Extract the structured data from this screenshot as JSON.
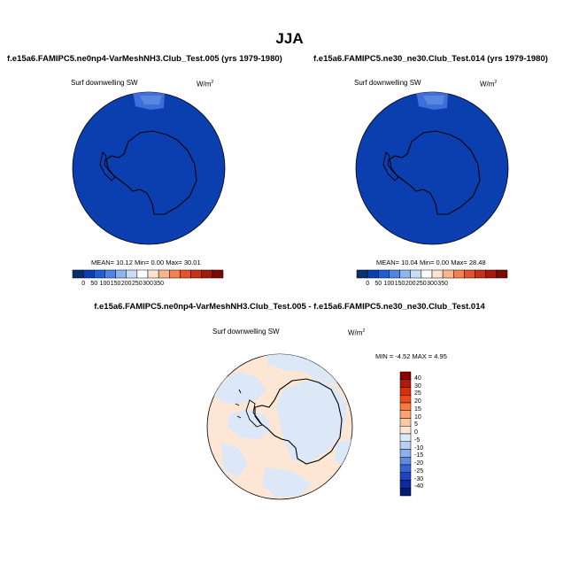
{
  "title": "JJA",
  "panels": [
    {
      "case_title": "f.e15a6.FAMIPC5.ne0np4-VarMeshNH3.Club_Test.005 (yrs 1979-1980)",
      "variable": "Surf downwelling SW",
      "units_base": "W/m",
      "units_exp": "2",
      "stats": "MEAN=  10.12  Min=   0.00  Max=  30.01"
    },
    {
      "case_title": "f.e15a6.FAMIPC5.ne30_ne30.Club_Test.014 (yrs 1979-1980)",
      "variable": "Surf downwelling SW",
      "units_base": "W/m",
      "units_exp": "2",
      "stats": "MEAN=  10.04  Min=   0.00  Max=  28.48"
    }
  ],
  "diff": {
    "title": "f.e15a6.FAMIPC5.ne0np4-VarMeshNH3.Club_Test.005 - f.e15a6.FAMIPC5.ne30_ne30.Club_Test.014",
    "variable": "Surf downwelling SW",
    "units_base": "W/m",
    "units_exp": "2",
    "stats": "MIN = -4.52 MAX =  4.95"
  },
  "colorbar_main": {
    "labels": [
      "0",
      "50",
      "100",
      "150",
      "200",
      "250",
      "300",
      "350"
    ],
    "colors": [
      "#08306b",
      "#0b3fb0",
      "#1f5fd6",
      "#4f86e6",
      "#8eb5f0",
      "#c9ddf7",
      "#ffffff",
      "#fde3cf",
      "#f9b58c",
      "#f47f50",
      "#e5522b",
      "#c43316",
      "#a11a0b",
      "#7a0a05"
    ]
  },
  "colorbar_diff": {
    "labels": [
      "40",
      "30",
      "25",
      "20",
      "15",
      "10",
      "5",
      "0",
      "-5",
      "-10",
      "-15",
      "-20",
      "-25",
      "-30",
      "-40"
    ],
    "colors": [
      "#8b0000",
      "#b01a0a",
      "#d6310d",
      "#f04a1a",
      "#f77b3f",
      "#f9a473",
      "#fcc9a3",
      "#fde6d3",
      "#dde9f8",
      "#b7cff2",
      "#8db0ea",
      "#5e8ae0",
      "#3663d6",
      "#1d44c0",
      "#0d2a9e",
      "#041b6e"
    ]
  },
  "colors": {
    "main_fill": "#0b3fb0",
    "main_fill_hi": "#3d6fd8",
    "diff_pos": "#fde6d3",
    "diff_neg": "#dce8f8"
  }
}
